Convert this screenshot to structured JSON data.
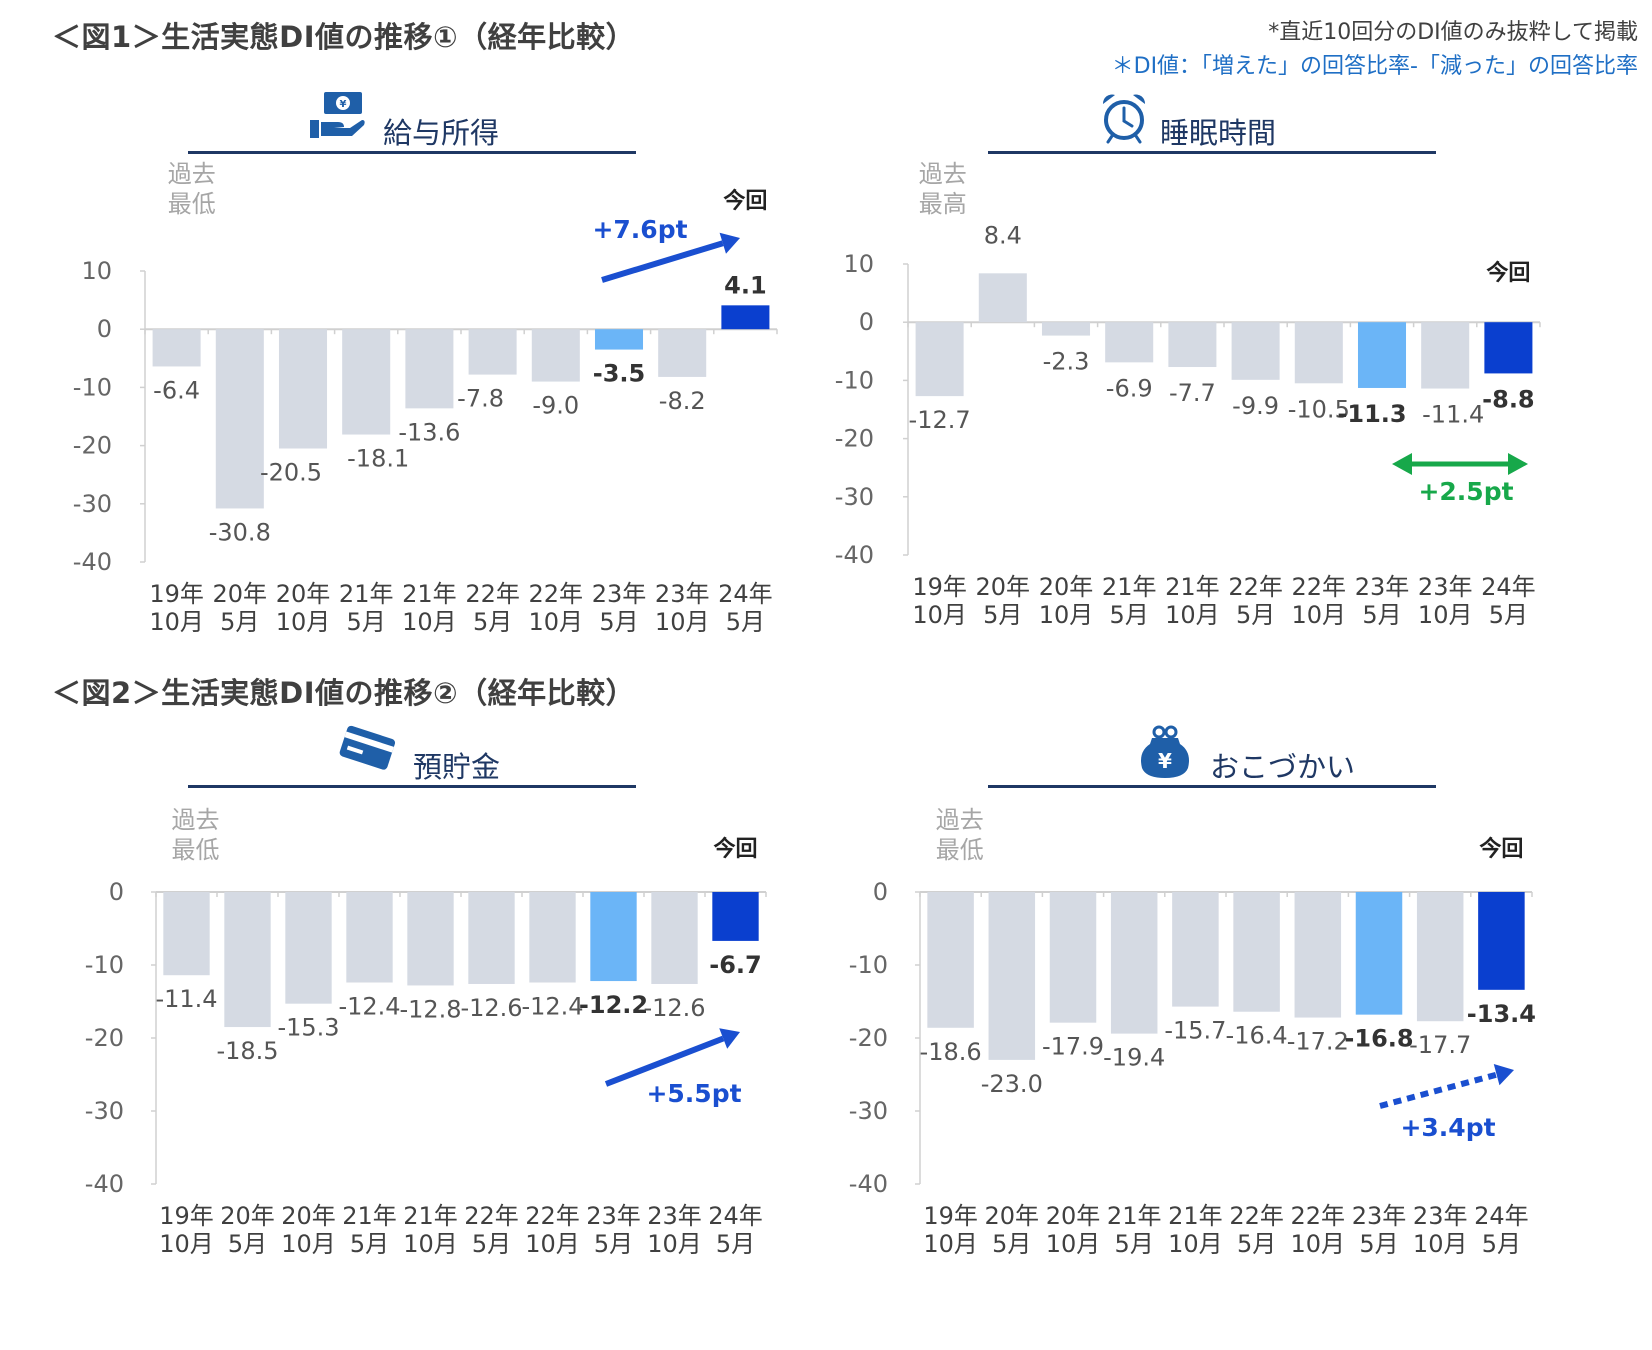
{
  "figure1": {
    "title": "＜図1＞生活実態DI値の推移①（経年比較）"
  },
  "figure2": {
    "title": "＜図2＞生活実態DI値の推移②（経年比較）"
  },
  "notes": {
    "line1": "*直近10回分のDI値のみ抜粋して掲載",
    "line2": "＊DI値：「増えた」の回答比率-「減った」の回答比率"
  },
  "icons": [
    "money-hand-icon",
    "alarm-clock-icon",
    "credit-card-icon",
    "coin-purse-icon"
  ],
  "colors": {
    "past": "#d5dae3",
    "prev": "#6bb5f7",
    "current": "#0a3fcf",
    "header": "#1f3864",
    "axis": "#d0d0d0",
    "arrow_blue": "#1a4fd0",
    "arrow_green": "#17a84a"
  },
  "chart_data": [
    {
      "type": "bar",
      "title": "給与所得",
      "categories": [
        "19年\n10月",
        "20年\n5月",
        "20年\n10月",
        "21年\n5月",
        "21年\n10月",
        "22年\n5月",
        "22年\n10月",
        "23年\n5月",
        "23年\n10月",
        "24年\n5月"
      ],
      "values": [
        -6.4,
        -30.8,
        -20.5,
        -18.1,
        -13.6,
        -7.8,
        -9.0,
        -3.5,
        -8.2,
        4.1
      ],
      "value_labels": [
        "-6.4",
        "-30.8",
        "-20.5",
        "-18.1",
        "-13.6",
        "-7.8",
        "-9.0",
        "-3.5",
        "-8.2",
        "4.1"
      ],
      "yticks": [
        10,
        0,
        -10,
        -20,
        -30,
        -40
      ],
      "ylim": [
        -40,
        10
      ],
      "past_label": "過去\n最低",
      "past_index": 1,
      "current_label": "今回",
      "change": "+7.6pt",
      "arrow": "solid-up"
    },
    {
      "type": "bar",
      "title": "睡眠時間",
      "categories": [
        "19年\n10月",
        "20年\n5月",
        "20年\n10月",
        "21年\n5月",
        "21年\n10月",
        "22年\n5月",
        "22年\n10月",
        "23年\n5月",
        "23年\n10月",
        "24年\n5月"
      ],
      "values": [
        -12.7,
        8.4,
        -2.3,
        -6.9,
        -7.7,
        -9.9,
        -10.5,
        -11.3,
        -11.4,
        -8.8
      ],
      "value_labels": [
        "-12.7",
        "8.4",
        "-2.3",
        "-6.9",
        "-7.7",
        "-9.9",
        "-10.5",
        "-11.3",
        "-11.4",
        "-8.8"
      ],
      "yticks": [
        10,
        0,
        -10,
        -20,
        -30,
        -40
      ],
      "ylim": [
        -40,
        10
      ],
      "past_label": "過去\n最高",
      "past_index": 1,
      "current_label": "今回",
      "change": "+2.5pt",
      "arrow": "double-green"
    },
    {
      "type": "bar",
      "title": "預貯金",
      "categories": [
        "19年\n10月",
        "20年\n5月",
        "20年\n10月",
        "21年\n5月",
        "21年\n10月",
        "22年\n5月",
        "22年\n10月",
        "23年\n5月",
        "23年\n10月",
        "24年\n5月"
      ],
      "values": [
        -11.4,
        -18.5,
        -15.3,
        -12.4,
        -12.8,
        -12.6,
        -12.4,
        -12.2,
        -12.6,
        -6.7
      ],
      "value_labels": [
        "-11.4",
        "-18.5",
        "-15.3",
        "-12.4",
        "-12.8",
        "-12.6",
        "-12.4",
        "-12.2",
        "-12.6",
        "-6.7"
      ],
      "yticks": [
        0,
        -10,
        -20,
        -30,
        -40
      ],
      "ylim": [
        -40,
        0
      ],
      "past_label": "過去\n最低",
      "past_index": 1,
      "current_label": "今回",
      "change": "+5.5pt",
      "arrow": "solid-up"
    },
    {
      "type": "bar",
      "title": "おこづかい",
      "categories": [
        "19年\n10月",
        "20年\n5月",
        "20年\n10月",
        "21年\n5月",
        "21年\n10月",
        "22年\n5月",
        "22年\n10月",
        "23年\n5月",
        "23年\n10月",
        "24年\n5月"
      ],
      "values": [
        -18.6,
        -23.0,
        -17.9,
        -19.4,
        -15.7,
        -16.4,
        -17.2,
        -16.8,
        -17.7,
        -13.4
      ],
      "value_labels": [
        "-18.6",
        "-23.0",
        "-17.9",
        "-19.4",
        "-15.7",
        "-16.4",
        "-17.2",
        "-16.8",
        "-17.7",
        "-13.4"
      ],
      "yticks": [
        0,
        -10,
        -20,
        -30,
        -40
      ],
      "ylim": [
        -40,
        0
      ],
      "past_label": "過去\n最低",
      "past_index": 1,
      "current_label": "今回",
      "change": "+3.4pt",
      "arrow": "dotted-up"
    }
  ]
}
